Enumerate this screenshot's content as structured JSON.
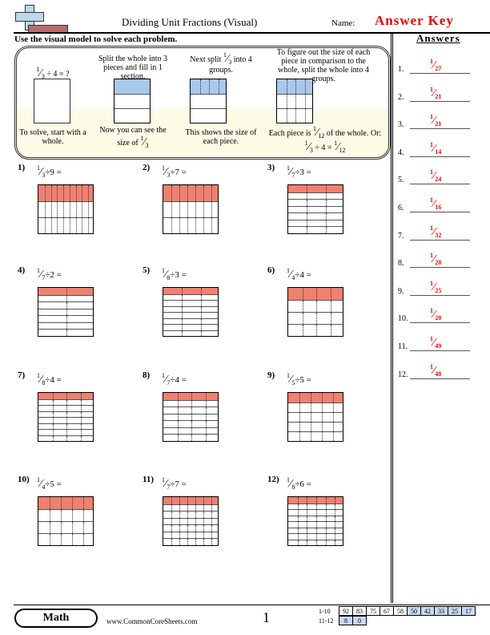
{
  "header": {
    "title": "Dividing Unit Fractions (Visual)",
    "name_label": "Name:",
    "name_value": "Answer Key"
  },
  "instructions": "Use the visual model to solve each problem.",
  "example": {
    "q": {
      "n": "1",
      "d": "3",
      "rest": " ÷ 4 = ?"
    },
    "step2": "Split the whole into 3 pieces and fill in 1 section.",
    "step3a": "Next split ",
    "step3b": " into 4 groups.",
    "step4": "To figure out the size of each piece in comparison to the whole, split the whole into 4 groups.",
    "cap1": "To solve, start with a whole.",
    "cap2": "Now you can see the size of ",
    "cap3": "This shows the size of each piece.",
    "cap4a": "Each piece is ",
    "cap4b": " of the whole. Or:",
    "eq": {
      "a": "1",
      "b": "3",
      "mid": " ÷ 4 = ",
      "c": "1",
      "d": "12"
    },
    "colors": {
      "fill": "#a8c8ec"
    }
  },
  "problems": [
    {
      "num": "1)",
      "d": 3,
      "k": 9
    },
    {
      "num": "2)",
      "d": 3,
      "k": 7
    },
    {
      "num": "3)",
      "d": 7,
      "k": 3
    },
    {
      "num": "4)",
      "d": 7,
      "k": 2
    },
    {
      "num": "5)",
      "d": 8,
      "k": 3
    },
    {
      "num": "6)",
      "d": 4,
      "k": 4
    },
    {
      "num": "7)",
      "d": 8,
      "k": 4
    },
    {
      "num": "8)",
      "d": 7,
      "k": 4
    },
    {
      "num": "9)",
      "d": 5,
      "k": 5
    },
    {
      "num": "10)",
      "d": 4,
      "k": 5
    },
    {
      "num": "11)",
      "d": 7,
      "k": 7
    },
    {
      "num": "12)",
      "d": 8,
      "k": 6
    }
  ],
  "answers_title": "Answers",
  "answers": [
    "27",
    "21",
    "21",
    "14",
    "24",
    "16",
    "32",
    "28",
    "25",
    "20",
    "49",
    "48"
  ],
  "footer": {
    "subject": "Math",
    "site": "www.CommonCoreSheets.com",
    "page": "1",
    "score_labels": [
      "1-10",
      "11-12"
    ],
    "scores1": [
      "92",
      "83",
      "75",
      "67",
      "58",
      "50",
      "42",
      "33",
      "25",
      "17"
    ],
    "scores2": [
      "8",
      "0"
    ]
  },
  "colors": {
    "red": "#f08070",
    "answer": "#e00000"
  }
}
